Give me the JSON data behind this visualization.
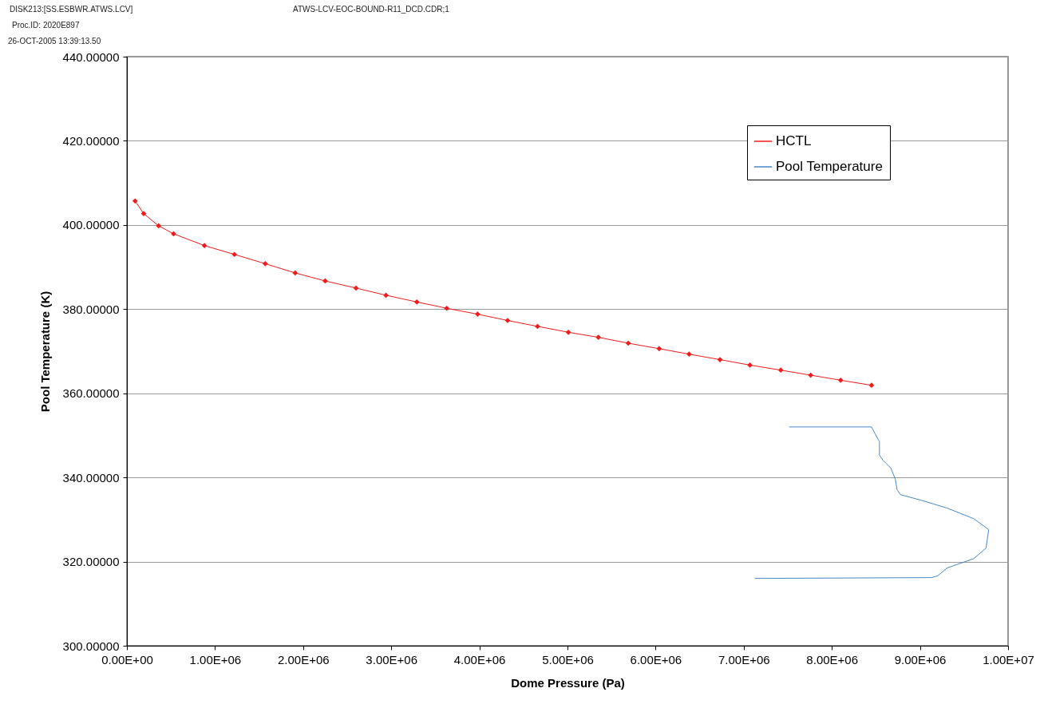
{
  "chart_data": {
    "type": "line",
    "xlabel": "Dome Pressure (Pa)",
    "ylabel": "Pool Temperature (K)",
    "annotations": [
      "DISK213:[SS.ESBWR.ATWS.LCV]",
      "ATWS-LCV-EOC-BOUND-R11_DCD.CDR;1",
      "Proc.ID: 2020E897",
      "26-OCT-2005 13:39:13.50"
    ],
    "xlim": [
      0,
      10000000
    ],
    "ylim": [
      300,
      440
    ],
    "xticks": [
      {
        "value": 0,
        "label": "0.00E+00"
      },
      {
        "value": 1000000,
        "label": "1.00E+06"
      },
      {
        "value": 2000000,
        "label": "2.00E+06"
      },
      {
        "value": 3000000,
        "label": "3.00E+06"
      },
      {
        "value": 4000000,
        "label": "4.00E+06"
      },
      {
        "value": 5000000,
        "label": "5.00E+06"
      },
      {
        "value": 6000000,
        "label": "6.00E+06"
      },
      {
        "value": 7000000,
        "label": "7.00E+06"
      },
      {
        "value": 8000000,
        "label": "8.00E+06"
      },
      {
        "value": 9000000,
        "label": "9.00E+06"
      },
      {
        "value": 10000000,
        "label": "1.00E+07"
      }
    ],
    "yticks": [
      {
        "value": 300,
        "label": "300.00000"
      },
      {
        "value": 320,
        "label": "320.00000"
      },
      {
        "value": 340,
        "label": "340.00000"
      },
      {
        "value": 360,
        "label": "360.00000"
      },
      {
        "value": 380,
        "label": "380.00000"
      },
      {
        "value": 400,
        "label": "400.00000"
      },
      {
        "value": 420,
        "label": "420.00000"
      },
      {
        "value": 440,
        "label": "440.00000"
      }
    ],
    "grid": "y",
    "legend": "top right",
    "line_style": "solid",
    "series": [
      {
        "name": "HCTL",
        "color": "#ee1c1c",
        "marker": "diamond",
        "x": [
          93000,
          190000,
          360000,
          530000,
          880000,
          1220000,
          1570000,
          1910000,
          2250000,
          2600000,
          2940000,
          3290000,
          3630000,
          3980000,
          4320000,
          4660000,
          5010000,
          5350000,
          5690000,
          6040000,
          6380000,
          6730000,
          7070000,
          7420000,
          7760000,
          8100000,
          8450000
        ],
        "values": [
          405.7,
          402.7,
          399.8,
          397.9,
          395.1,
          393.0,
          390.8,
          388.6,
          386.7,
          385.0,
          383.3,
          381.7,
          380.2,
          378.8,
          377.3,
          375.9,
          374.5,
          373.3,
          371.9,
          370.6,
          369.3,
          368.0,
          366.7,
          365.5,
          364.3,
          363.1,
          361.9
        ]
      },
      {
        "name": "Pool Temperature",
        "color": "#4a86c8",
        "marker": "none",
        "x": [
          7520000,
          8450000,
          8490000,
          8540000,
          8540000,
          8580000,
          8670000,
          8720000,
          8740000,
          8780000,
          9010000,
          9310000,
          9610000,
          9780000,
          9750000,
          9610000,
          9310000,
          9200000,
          9130000,
          7130000
        ],
        "values": [
          352.0,
          352.0,
          350.4,
          348.5,
          345.3,
          344.1,
          342.2,
          339.6,
          337.1,
          335.9,
          334.6,
          332.7,
          330.2,
          327.6,
          323.2,
          320.7,
          318.5,
          316.6,
          316.2,
          316.0
        ]
      }
    ]
  }
}
